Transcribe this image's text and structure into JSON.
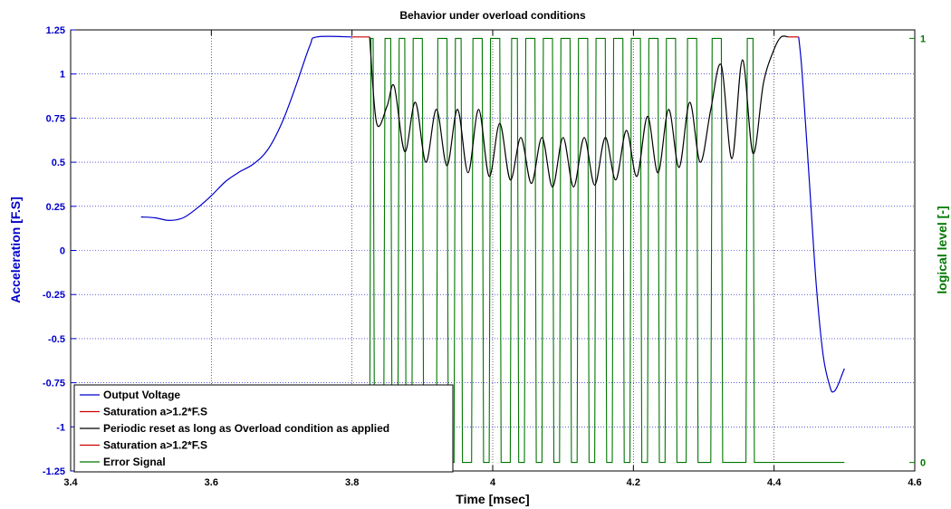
{
  "chart_data": {
    "type": "line",
    "title": "Behavior under overload conditions",
    "xlabel": "Time [msec]",
    "ylabel": "Acceleration [F.S]",
    "y2label": "logical level [-]",
    "xlim": [
      3.4,
      4.6
    ],
    "ylim": [
      -1.25,
      1.25
    ],
    "y2lim": [
      -0.02,
      1.02
    ],
    "xticks": [
      "3.4",
      "3.6",
      "3.8",
      "4",
      "4.2",
      "4.4",
      "4.6"
    ],
    "yticks": [
      "-1.25",
      "-1",
      "-0.75",
      "-0.5",
      "-0.25",
      "0",
      "0.25",
      "0.5",
      "0.75",
      "1",
      "1.25"
    ],
    "y2ticks": [
      "0",
      "1"
    ],
    "grid": true,
    "legend_position": "bottom-left",
    "series": [
      {
        "name": "Output Voltage",
        "axis": "left",
        "color": "#0000cc",
        "x": [
          3.5,
          3.52,
          3.54,
          3.56,
          3.58,
          3.6,
          3.62,
          3.64,
          3.66,
          3.68,
          3.7,
          3.72,
          3.74,
          3.75,
          3.8
        ],
        "y": [
          0.19,
          0.185,
          0.17,
          0.185,
          0.24,
          0.31,
          0.39,
          0.445,
          0.49,
          0.57,
          0.72,
          0.93,
          1.16,
          1.21,
          1.21
        ]
      },
      {
        "name": "Saturation a>1.2*F.S",
        "axis": "left",
        "color": "#cc0000",
        "x": [
          3.8,
          3.825
        ],
        "y": [
          1.21,
          1.21
        ]
      },
      {
        "name": "Periodic reset as long as Overload condition as applied",
        "axis": "left",
        "color": "#000000",
        "x": [
          3.825,
          3.835,
          3.85,
          3.86,
          3.875,
          3.89,
          3.905,
          3.92,
          3.935,
          3.95,
          3.965,
          3.98,
          3.995,
          4.01,
          4.025,
          4.04,
          4.055,
          4.07,
          4.085,
          4.1,
          4.115,
          4.13,
          4.145,
          4.16,
          4.175,
          4.19,
          4.205,
          4.22,
          4.235,
          4.25,
          4.265,
          4.28,
          4.295,
          4.31,
          4.325,
          4.34,
          4.355,
          4.37,
          4.385,
          4.4,
          4.41,
          4.42
        ],
        "y": [
          1.21,
          0.72,
          0.82,
          0.93,
          0.56,
          0.84,
          0.5,
          0.8,
          0.48,
          0.8,
          0.44,
          0.8,
          0.42,
          0.72,
          0.4,
          0.64,
          0.38,
          0.64,
          0.36,
          0.64,
          0.36,
          0.64,
          0.37,
          0.64,
          0.4,
          0.68,
          0.42,
          0.76,
          0.44,
          0.8,
          0.47,
          0.84,
          0.5,
          0.8,
          1.05,
          0.52,
          1.08,
          0.55,
          0.95,
          1.14,
          1.21,
          1.21
        ]
      },
      {
        "name": "Saturation a>1.2*F.S",
        "axis": "left",
        "color": "#cc0000",
        "x": [
          4.42,
          4.435
        ],
        "y": [
          1.21,
          1.21
        ]
      },
      {
        "name": "Output Voltage",
        "axis": "left",
        "color": "#0000cc",
        "x": [
          4.435,
          4.44,
          4.45,
          4.46,
          4.47,
          4.48,
          4.485,
          4.49,
          4.495,
          4.5
        ],
        "y": [
          1.21,
          1.0,
          0.4,
          -0.2,
          -0.6,
          -0.78,
          -0.8,
          -0.77,
          -0.72,
          -0.67
        ]
      },
      {
        "name": "Error Signal",
        "axis": "right",
        "color": "#007700",
        "pulses_high_x": [
          [
            3.825,
            3.83
          ],
          [
            3.845,
            3.855
          ],
          [
            3.865,
            3.875
          ],
          [
            3.885,
            3.9
          ],
          [
            3.92,
            3.935
          ],
          [
            3.945,
            3.955
          ],
          [
            3.97,
            3.985
          ],
          [
            3.995,
            4.01
          ],
          [
            4.025,
            4.035
          ],
          [
            4.045,
            4.06
          ],
          [
            4.07,
            4.085
          ],
          [
            4.095,
            4.11
          ],
          [
            4.12,
            4.135
          ],
          [
            4.145,
            4.16
          ],
          [
            4.17,
            4.185
          ],
          [
            4.195,
            4.21
          ],
          [
            4.22,
            4.235
          ],
          [
            4.245,
            4.26
          ],
          [
            4.275,
            4.29
          ],
          [
            4.31,
            4.325
          ],
          [
            4.36,
            4.37
          ]
        ],
        "low_value": 0,
        "high_value": 1,
        "x_end": 4.5
      }
    ],
    "legend_entries": [
      {
        "label": "Output Voltage",
        "color": "#0000cc"
      },
      {
        "label": "Saturation a>1.2*F.S",
        "color": "#cc0000"
      },
      {
        "label": "Periodic reset as long as Overload condition as applied",
        "color": "#000000"
      },
      {
        "label": "Saturation a>1.2*F.S",
        "color": "#cc0000"
      },
      {
        "label": "Error Signal",
        "color": "#007700"
      }
    ],
    "colors": {
      "left_axis": "#0000cc",
      "right_axis": "#007700",
      "grid_horizontal": "#0000cc",
      "grid_vertical": "#000000"
    }
  }
}
